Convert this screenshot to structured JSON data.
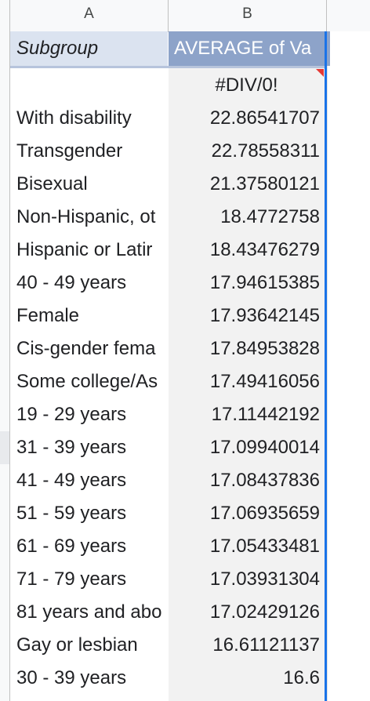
{
  "columns": {
    "a": "A",
    "b": "B"
  },
  "pivot": {
    "row_header": "Subgroup",
    "value_header": "AVERAGE of Va",
    "rows": [
      {
        "label": "",
        "value": "#DIV/0!"
      },
      {
        "label": "With disability",
        "value": "22.86541707"
      },
      {
        "label": "Transgender",
        "value": "22.78558311"
      },
      {
        "label": "Bisexual",
        "value": "21.37580121"
      },
      {
        "label": "Non-Hispanic, ot",
        "value": "18.4772758"
      },
      {
        "label": "Hispanic or Latir",
        "value": "18.43476279"
      },
      {
        "label": "40 - 49 years",
        "value": "17.94615385"
      },
      {
        "label": "Female",
        "value": "17.93642145"
      },
      {
        "label": "Cis-gender fema",
        "value": "17.84953828"
      },
      {
        "label": "Some college/As",
        "value": "17.49416056"
      },
      {
        "label": "19 - 29 years",
        "value": "17.11442192"
      },
      {
        "label": "31 - 39 years",
        "value": "17.09940014"
      },
      {
        "label": "41 - 49 years",
        "value": "17.08437836"
      },
      {
        "label": "51 - 59 years",
        "value": "17.06935659"
      },
      {
        "label": "61 - 69 years",
        "value": "17.05433481"
      },
      {
        "label": "71 - 79 years",
        "value": "17.03931304"
      },
      {
        "label": "81 years and abo",
        "value": "17.02429126"
      },
      {
        "label": "Gay or lesbian",
        "value": "16.61121137"
      },
      {
        "label": "30 - 39 years",
        "value": "16.6"
      }
    ]
  },
  "colors": {
    "header_row_bg": "#dbe3f0",
    "value_header_bg": "#8da3c9",
    "selection": "#1a73e8",
    "error_flag": "#e53935"
  }
}
